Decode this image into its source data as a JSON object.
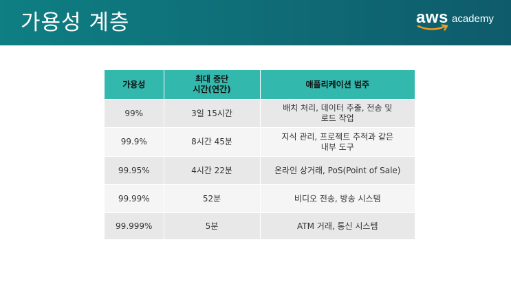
{
  "slide": {
    "title": "가용성 계층"
  },
  "logo": {
    "brand": "aws",
    "product": "academy"
  },
  "table": {
    "headers": {
      "availability": "가용성",
      "downtime": "최대 중단\n시간(연간)",
      "category": "애플리케이션 범주"
    },
    "rows": [
      {
        "availability": "99%",
        "downtime": "3일 15시간",
        "category": "배치 처리, 데이터 추출, 전송 및\n로드 작업"
      },
      {
        "availability": "99.9%",
        "downtime": "8시간 45분",
        "category": "지식 관리, 프로젝트 추적과 같은\n내부 도구"
      },
      {
        "availability": "99.95%",
        "downtime": "4시간 22분",
        "category": "온라인 상거래, PoS(Point of Sale)"
      },
      {
        "availability": "99.99%",
        "downtime": "52분",
        "category": "비디오 전송, 방송 시스템"
      },
      {
        "availability": "99.999%",
        "downtime": "5분",
        "category": "ATM 거래, 통신 시스템"
      }
    ]
  }
}
